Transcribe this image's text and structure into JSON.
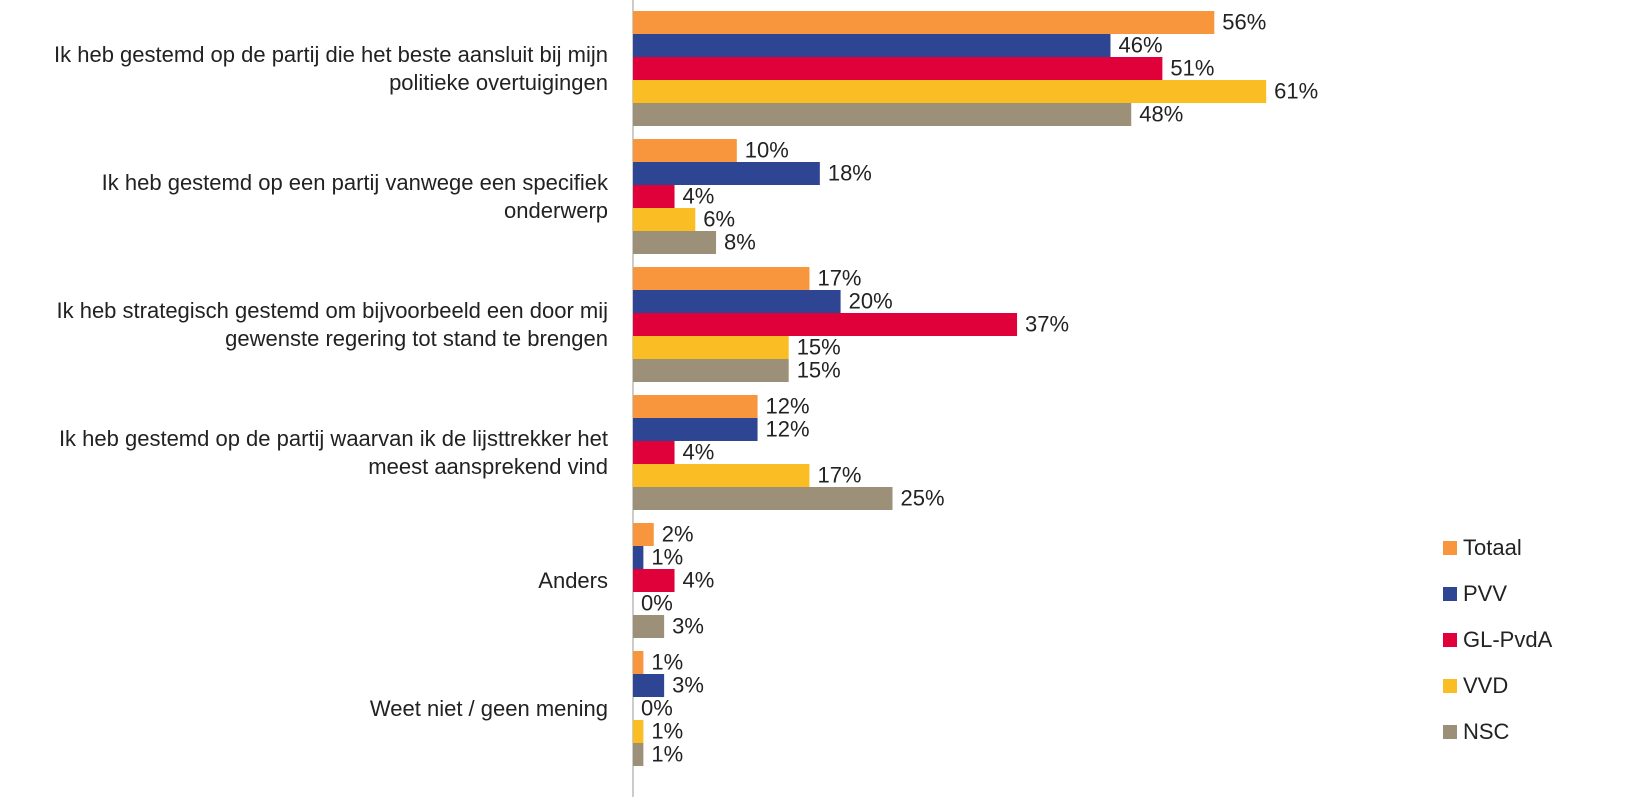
{
  "chart_data": {
    "type": "bar",
    "orientation": "horizontal",
    "categories": [
      "Ik heb gestemd op de partij die het beste aansluit bij mijn politieke overtuigingen",
      "Ik heb gestemd op een partij vanwege een specifiek onderwerp",
      "Ik heb strategisch gestemd om bijvoorbeeld een door mij gewenste regering tot stand te brengen",
      "Ik heb gestemd op de partij waarvan ik de lijsttrekker het meest aansprekend vind",
      "Anders",
      "Weet niet / geen mening"
    ],
    "series": [
      {
        "name": "Totaal",
        "color": "#f7963c",
        "values": [
          56,
          10,
          17,
          12,
          2,
          1
        ],
        "value_labels": [
          "56%",
          "10%",
          "17%",
          "12%",
          "2%",
          "1%"
        ]
      },
      {
        "name": "PVV",
        "color": "#2e4593",
        "values": [
          46,
          18,
          20,
          12,
          1,
          3
        ],
        "value_labels": [
          "46%",
          "18%",
          "20%",
          "12%",
          "1%",
          "3%"
        ]
      },
      {
        "name": "GL-PvdA",
        "color": "#e0003a",
        "values": [
          51,
          4,
          37,
          4,
          4,
          0
        ],
        "value_labels": [
          "51%",
          "4%",
          "37%",
          "4%",
          "4%",
          "0%"
        ]
      },
      {
        "name": "VVD",
        "color": "#fbbd24",
        "values": [
          61,
          6,
          15,
          17,
          0,
          1
        ],
        "value_labels": [
          "61%",
          "6%",
          "15%",
          "17%",
          "0%",
          "1%"
        ]
      },
      {
        "name": "NSC",
        "color": "#9c9178",
        "values": [
          48,
          8,
          15,
          25,
          3,
          1
        ],
        "value_labels": [
          "48%",
          "8%",
          "15%",
          "25%",
          "3%",
          "1%"
        ]
      }
    ],
    "xlim": [
      0,
      100
    ],
    "legend": "bottom-right"
  }
}
